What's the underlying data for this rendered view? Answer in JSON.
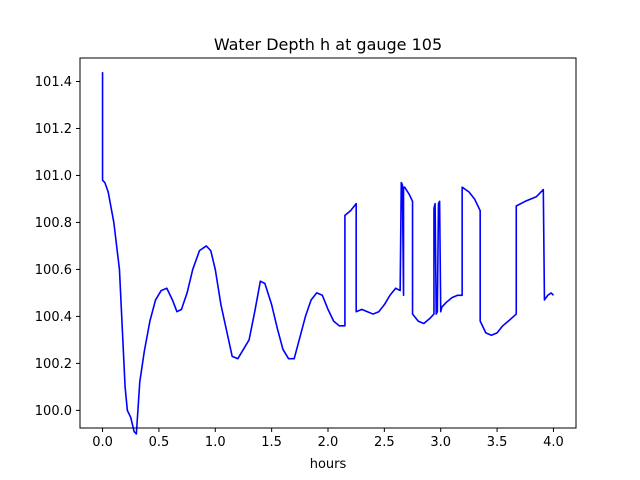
{
  "chart_data": {
    "type": "line",
    "title": "Water Depth h at gauge 105",
    "xlabel": "hours",
    "ylabel": "",
    "xlim": [
      -0.2,
      4.2
    ],
    "ylim": [
      99.925,
      101.5
    ],
    "xticks": [
      0.0,
      0.5,
      1.0,
      1.5,
      2.0,
      2.5,
      3.0,
      3.5,
      4.0
    ],
    "xtick_labels": [
      "0.0",
      "0.5",
      "1.0",
      "1.5",
      "2.0",
      "2.5",
      "3.0",
      "3.5",
      "4.0"
    ],
    "yticks": [
      100.0,
      100.2,
      100.4,
      100.6,
      100.8,
      101.0,
      101.2,
      101.4
    ],
    "ytick_labels": [
      "100.0",
      "100.2",
      "100.4",
      "100.6",
      "100.8",
      "101.0",
      "101.2",
      "101.4"
    ],
    "grid": false,
    "series": [
      {
        "color": "#0000ff",
        "x": [
          0.0,
          0.0,
          0.02,
          0.05,
          0.1,
          0.15,
          0.2,
          0.22,
          0.25,
          0.28,
          0.3,
          0.33,
          0.37,
          0.42,
          0.47,
          0.52,
          0.57,
          0.62,
          0.66,
          0.7,
          0.75,
          0.8,
          0.86,
          0.92,
          0.96,
          1.0,
          1.05,
          1.1,
          1.15,
          1.2,
          1.25,
          1.3,
          1.35,
          1.4,
          1.44,
          1.5,
          1.55,
          1.6,
          1.65,
          1.7,
          1.75,
          1.8,
          1.85,
          1.9,
          1.95,
          2.0,
          2.05,
          2.1,
          2.15,
          2.15,
          2.2,
          2.25,
          2.25,
          2.3,
          2.35,
          2.4,
          2.45,
          2.5,
          2.55,
          2.6,
          2.64,
          2.65,
          2.66,
          2.67,
          2.67,
          2.68,
          2.72,
          2.75,
          2.75,
          2.8,
          2.85,
          2.9,
          2.94,
          2.94,
          2.95,
          2.96,
          2.97,
          2.98,
          2.99,
          3.0,
          3.01,
          3.05,
          3.1,
          3.15,
          3.19,
          3.19,
          3.25,
          3.3,
          3.35,
          3.35,
          3.4,
          3.45,
          3.5,
          3.55,
          3.6,
          3.67,
          3.67,
          3.75,
          3.8,
          3.85,
          3.91,
          3.92,
          3.95,
          3.98,
          4.0
        ],
        "y": [
          101.44,
          100.98,
          100.97,
          100.93,
          100.8,
          100.6,
          100.1,
          100.0,
          99.97,
          99.91,
          99.9,
          100.12,
          100.25,
          100.38,
          100.47,
          100.51,
          100.52,
          100.47,
          100.42,
          100.43,
          100.5,
          100.6,
          100.68,
          100.7,
          100.68,
          100.6,
          100.45,
          100.34,
          100.23,
          100.22,
          100.26,
          100.3,
          100.42,
          100.55,
          100.54,
          100.45,
          100.35,
          100.26,
          100.22,
          100.22,
          100.31,
          100.4,
          100.47,
          100.5,
          100.49,
          100.43,
          100.38,
          100.36,
          100.36,
          100.83,
          100.85,
          100.88,
          100.42,
          100.43,
          100.42,
          100.41,
          100.42,
          100.45,
          100.49,
          100.52,
          100.51,
          100.97,
          100.96,
          100.49,
          100.95,
          100.95,
          100.92,
          100.89,
          100.41,
          100.38,
          100.37,
          100.39,
          100.41,
          100.86,
          100.88,
          100.41,
          100.42,
          100.88,
          100.89,
          100.42,
          100.44,
          100.46,
          100.48,
          100.49,
          100.49,
          100.95,
          100.93,
          100.9,
          100.85,
          100.38,
          100.33,
          100.32,
          100.33,
          100.36,
          100.38,
          100.41,
          100.87,
          100.89,
          100.9,
          100.91,
          100.94,
          100.47,
          100.49,
          100.5,
          100.49
        ]
      }
    ]
  }
}
